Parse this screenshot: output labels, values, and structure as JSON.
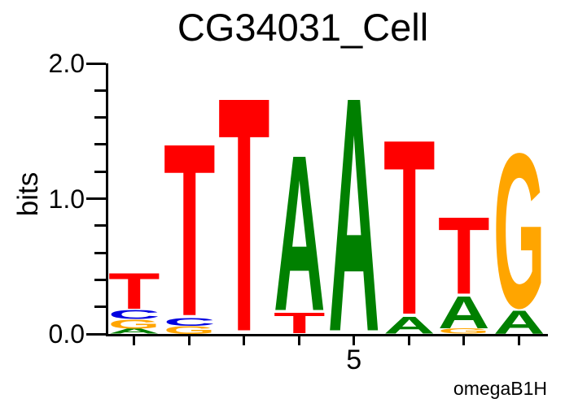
{
  "title": "CG34031_Cell",
  "watermark": "omegaB1H",
  "y_axis": {
    "label": "bits",
    "major_ticks": [
      {
        "value": 2.0,
        "label": "2.0"
      },
      {
        "value": 1.0,
        "label": "1.0"
      },
      {
        "value": 0.0,
        "label": "0.0"
      }
    ],
    "minor_step": 0.2,
    "range": [
      0.0,
      2.0
    ]
  },
  "x_axis": {
    "tick_label": "5",
    "labeled_position": 5,
    "num_ticks": 8
  },
  "colors": {
    "A": "#008000",
    "C": "#0000E0",
    "G": "#FFA500",
    "T": "#FF0000",
    "axis": "#000000",
    "text": "#000000",
    "background": "#FFFFFF"
  },
  "chart_data": {
    "type": "sequence_logo",
    "title": "CG34031_Cell",
    "ylabel": "bits",
    "ylim": [
      0.0,
      2.0
    ],
    "num_positions": 8,
    "stack_order": "bottom_to_top",
    "positions": [
      {
        "pos": 1,
        "stack": [
          {
            "base": "A",
            "bits": 0.04
          },
          {
            "base": "G",
            "bits": 0.07
          },
          {
            "base": "C",
            "bits": 0.07
          },
          {
            "base": "T",
            "bits": 0.28
          }
        ]
      },
      {
        "pos": 2,
        "stack": [
          {
            "base": "G",
            "bits": 0.06
          },
          {
            "base": "C",
            "bits": 0.06
          },
          {
            "base": "T",
            "bits": 1.34
          }
        ]
      },
      {
        "pos": 3,
        "stack": [
          {
            "base": "T",
            "bits": 1.82
          }
        ]
      },
      {
        "pos": 4,
        "stack": [
          {
            "base": "T",
            "bits": 0.16
          },
          {
            "base": "A",
            "bits": 1.21
          }
        ]
      },
      {
        "pos": 5,
        "stack": [
          {
            "base": "A",
            "bits": 1.82
          }
        ]
      },
      {
        "pos": 6,
        "stack": [
          {
            "base": "A",
            "bits": 0.13
          },
          {
            "base": "T",
            "bits": 1.36
          }
        ]
      },
      {
        "pos": 7,
        "stack": [
          {
            "base": "G",
            "bits": 0.04
          },
          {
            "base": "A",
            "bits": 0.25
          },
          {
            "base": "T",
            "bits": 0.6
          }
        ]
      },
      {
        "pos": 8,
        "stack": [
          {
            "base": "A",
            "bits": 0.18
          },
          {
            "base": "G",
            "bits": 1.2
          }
        ]
      }
    ]
  }
}
